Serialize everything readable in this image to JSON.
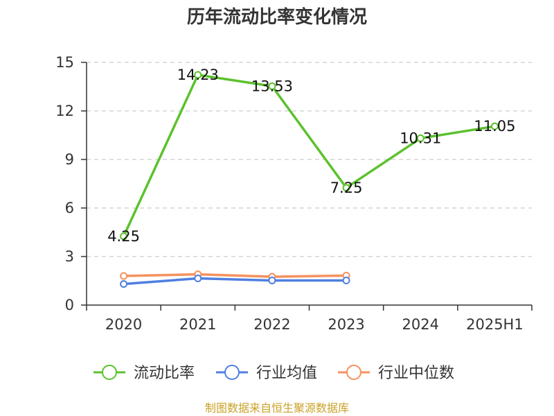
{
  "title": "历年流动比率变化情况",
  "source": "制图数据来自恒生聚源数据库",
  "colors": {
    "current_ratio": "#5cc12e",
    "industry_avg": "#4f7fe0",
    "industry_median": "#f5915e"
  },
  "chart_data": {
    "type": "line",
    "title": "历年流动比率变化情况",
    "categories": [
      "2020",
      "2021",
      "2022",
      "2023",
      "2024",
      "2025H1"
    ],
    "ylim": [
      0,
      15
    ],
    "yticks": [
      "0",
      "3",
      "6",
      "9",
      "12",
      "15"
    ],
    "grid": true,
    "legend_position": "bottom",
    "series": [
      {
        "name": "流动比率",
        "values": [
          4.25,
          14.23,
          13.53,
          7.25,
          10.31,
          11.05
        ],
        "labels": [
          "4.25",
          "14.23",
          "13.53",
          "7.25",
          "10.31",
          "11.05"
        ]
      },
      {
        "name": "行业均值",
        "values": [
          1.3,
          1.65,
          1.52,
          1.52,
          null,
          null
        ]
      },
      {
        "name": "行业中位数",
        "values": [
          1.8,
          1.9,
          1.75,
          1.82,
          null,
          null
        ]
      }
    ]
  }
}
